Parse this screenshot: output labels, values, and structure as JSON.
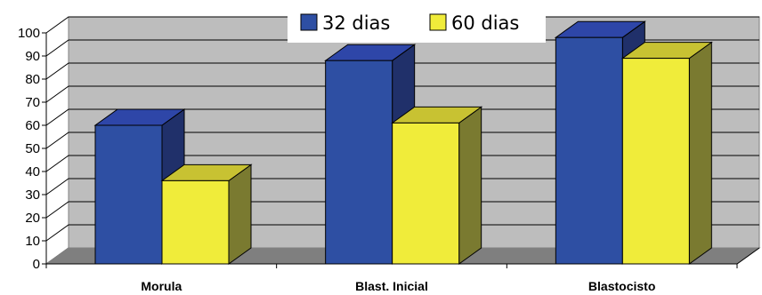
{
  "chart_data": {
    "type": "bar",
    "categories": [
      "Morula",
      "Blast. Inicial",
      "Blastocisto"
    ],
    "series": [
      {
        "name": "32 dias",
        "values": [
          60,
          88,
          98
        ],
        "color": "#2E4FA3",
        "side_color": "#20306A",
        "top_color": "#2E46A8"
      },
      {
        "name": "60 dias",
        "values": [
          36,
          61,
          89
        ],
        "color": "#F0EC3A",
        "side_color": "#7A7A30",
        "top_color": "#C8C232"
      }
    ],
    "y_ticks": [
      "0",
      "10",
      "20",
      "30",
      "40",
      "50",
      "60",
      "70",
      "80",
      "90",
      "100"
    ],
    "ylim": [
      0,
      100
    ],
    "title": "",
    "xlabel": "",
    "ylabel": "",
    "grid": true,
    "legend_position": "top-center",
    "wall_color": "#BDBDBD",
    "floor_color": "#7F7F7F"
  }
}
